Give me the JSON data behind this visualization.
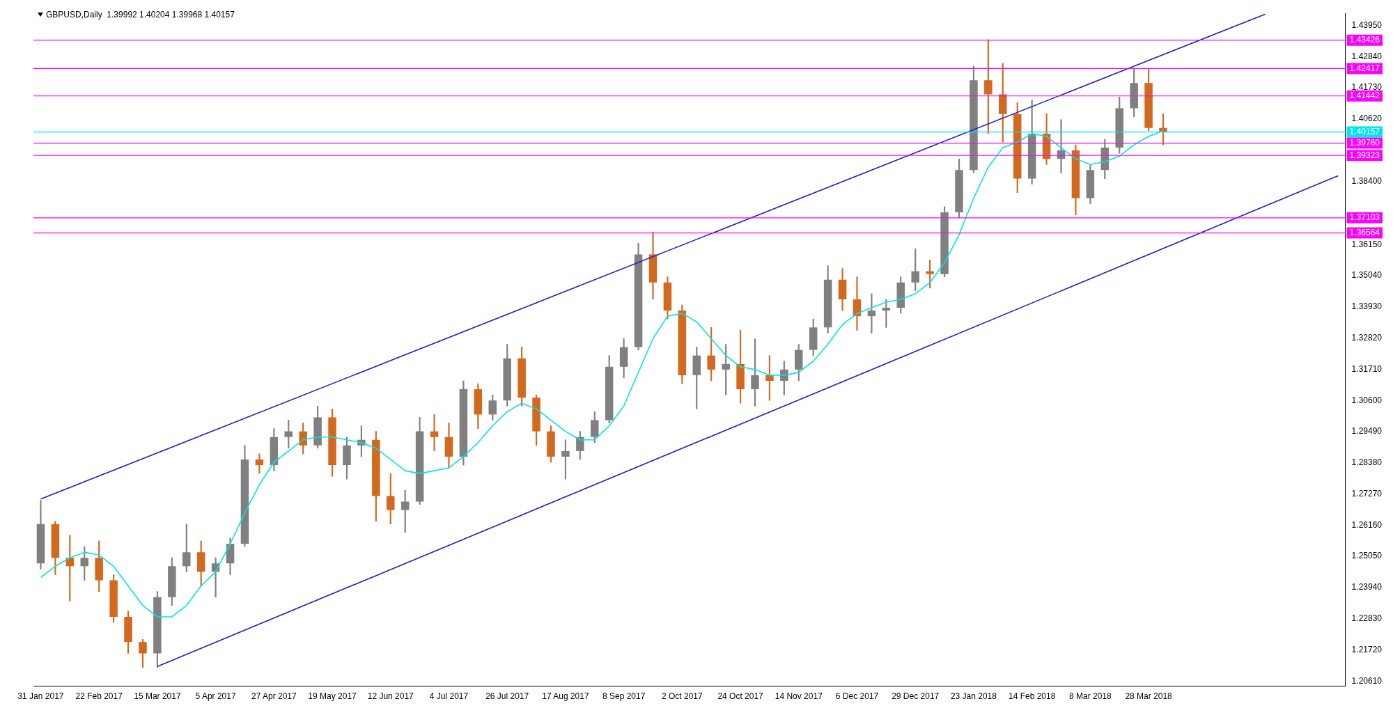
{
  "chart_data": {
    "type": "candlestick",
    "title": "GBPUSD,Daily  1.39992 1.40204 1.39968 1.40157",
    "categories": [
      "31 Jan 2017",
      null,
      null,
      null,
      "22 Feb 2017",
      null,
      null,
      null,
      "15 Mar 2017",
      null,
      null,
      null,
      "5 Apr 2017",
      null,
      null,
      null,
      "27 Apr 2017",
      null,
      null,
      null,
      "19 May 2017",
      null,
      null,
      null,
      "12 Jun 2017",
      null,
      null,
      null,
      "4 Jul 2017",
      null,
      null,
      null,
      "26 Jul 2017",
      null,
      null,
      null,
      "17 Aug 2017",
      null,
      null,
      null,
      "8 Sep 2017",
      null,
      null,
      null,
      "2 Oct 2017",
      null,
      null,
      null,
      "24 Oct 2017",
      null,
      null,
      null,
      "14 Nov 2017",
      null,
      null,
      null,
      "6 Dec 2017",
      null,
      null,
      null,
      "29 Dec 2017",
      null,
      null,
      null,
      "23 Jan 2018",
      null,
      null,
      null,
      "14 Feb 2018",
      null,
      null,
      null,
      "8 Mar 2018",
      null,
      null,
      null,
      "28 Mar 2018",
      null,
      null,
      null,
      null,
      null,
      null,
      null,
      null,
      null,
      null,
      null,
      null,
      null
    ],
    "ohlc": [
      [
        1.248,
        1.2705,
        1.246,
        1.262
      ],
      [
        1.262,
        1.263,
        1.244,
        1.25
      ],
      [
        1.25,
        1.258,
        1.2345,
        1.247
      ],
      [
        1.247,
        1.254,
        1.242,
        1.25
      ],
      [
        1.25,
        1.256,
        1.238,
        1.242
      ],
      [
        1.242,
        1.244,
        1.227,
        1.229
      ],
      [
        1.229,
        1.231,
        1.216,
        1.22
      ],
      [
        1.22,
        1.221,
        1.211,
        1.216
      ],
      [
        1.216,
        1.238,
        1.211,
        1.236
      ],
      [
        1.236,
        1.25,
        1.233,
        1.247
      ],
      [
        1.247,
        1.262,
        1.245,
        1.252
      ],
      [
        1.252,
        1.256,
        1.24,
        1.245
      ],
      [
        1.245,
        1.25,
        1.236,
        1.248
      ],
      [
        1.248,
        1.257,
        1.244,
        1.255
      ],
      [
        1.255,
        1.29,
        1.254,
        1.285
      ],
      [
        1.285,
        1.287,
        1.28,
        1.283
      ],
      [
        1.283,
        1.296,
        1.281,
        1.293
      ],
      [
        1.293,
        1.299,
        1.289,
        1.295
      ],
      [
        1.295,
        1.298,
        1.287,
        1.29
      ],
      [
        1.29,
        1.304,
        1.289,
        1.3
      ],
      [
        1.3,
        1.303,
        1.279,
        1.283
      ],
      [
        1.283,
        1.293,
        1.278,
        1.29
      ],
      [
        1.29,
        1.297,
        1.286,
        1.292
      ],
      [
        1.292,
        1.295,
        1.263,
        1.272
      ],
      [
        1.272,
        1.28,
        1.262,
        1.267
      ],
      [
        1.267,
        1.274,
        1.259,
        1.27
      ],
      [
        1.27,
        1.3,
        1.269,
        1.295
      ],
      [
        1.295,
        1.301,
        1.288,
        1.293
      ],
      [
        1.293,
        1.298,
        1.282,
        1.286
      ],
      [
        1.286,
        1.313,
        1.283,
        1.31
      ],
      [
        1.31,
        1.312,
        1.296,
        1.301
      ],
      [
        1.301,
        1.308,
        1.299,
        1.306
      ],
      [
        1.306,
        1.326,
        1.304,
        1.321
      ],
      [
        1.321,
        1.325,
        1.304,
        1.307
      ],
      [
        1.307,
        1.308,
        1.29,
        1.295
      ],
      [
        1.295,
        1.297,
        1.284,
        1.286
      ],
      [
        1.286,
        1.292,
        1.278,
        1.288
      ],
      [
        1.288,
        1.295,
        1.285,
        1.293
      ],
      [
        1.293,
        1.302,
        1.291,
        1.299
      ],
      [
        1.299,
        1.322,
        1.298,
        1.318
      ],
      [
        1.318,
        1.328,
        1.314,
        1.325
      ],
      [
        1.325,
        1.362,
        1.324,
        1.358
      ],
      [
        1.358,
        1.366,
        1.342,
        1.348
      ],
      [
        1.348,
        1.35,
        1.335,
        1.338
      ],
      [
        1.338,
        1.34,
        1.312,
        1.315
      ],
      [
        1.315,
        1.325,
        1.303,
        1.322
      ],
      [
        1.322,
        1.332,
        1.313,
        1.317
      ],
      [
        1.317,
        1.326,
        1.308,
        1.319
      ],
      [
        1.319,
        1.331,
        1.305,
        1.31
      ],
      [
        1.31,
        1.328,
        1.304,
        1.315
      ],
      [
        1.315,
        1.322,
        1.306,
        1.313
      ],
      [
        1.313,
        1.32,
        1.308,
        1.317
      ],
      [
        1.317,
        1.326,
        1.313,
        1.324
      ],
      [
        1.324,
        1.335,
        1.322,
        1.332
      ],
      [
        1.332,
        1.354,
        1.33,
        1.349
      ],
      [
        1.349,
        1.353,
        1.338,
        1.342
      ],
      [
        1.342,
        1.35,
        1.331,
        1.336
      ],
      [
        1.336,
        1.344,
        1.33,
        1.338
      ],
      [
        1.338,
        1.342,
        1.332,
        1.339
      ],
      [
        1.339,
        1.35,
        1.337,
        1.348
      ],
      [
        1.348,
        1.36,
        1.345,
        1.352
      ],
      [
        1.352,
        1.356,
        1.346,
        1.351
      ],
      [
        1.351,
        1.375,
        1.35,
        1.373
      ],
      [
        1.373,
        1.392,
        1.371,
        1.388
      ],
      [
        1.388,
        1.425,
        1.387,
        1.42
      ],
      [
        1.42,
        1.4345,
        1.401,
        1.415
      ],
      [
        1.415,
        1.426,
        1.398,
        1.408
      ],
      [
        1.408,
        1.412,
        1.38,
        1.385
      ],
      [
        1.385,
        1.413,
        1.383,
        1.401
      ],
      [
        1.401,
        1.408,
        1.39,
        1.392
      ],
      [
        1.392,
        1.406,
        1.387,
        1.395
      ],
      [
        1.395,
        1.397,
        1.372,
        1.378
      ],
      [
        1.378,
        1.39,
        1.376,
        1.388
      ],
      [
        1.388,
        1.399,
        1.385,
        1.396
      ],
      [
        1.396,
        1.414,
        1.394,
        1.41
      ],
      [
        1.41,
        1.424,
        1.407,
        1.419
      ],
      [
        1.419,
        1.424,
        1.402,
        1.403
      ],
      [
        1.403,
        1.408,
        1.397,
        1.4016
      ],
      null,
      null,
      null,
      null,
      null,
      null,
      null,
      null,
      null,
      null,
      null,
      null
    ],
    "colors": [
      "#808080",
      "#d2691e",
      "#d2691e",
      "#808080",
      "#d2691e",
      "#d2691e",
      "#d2691e",
      "#d2691e",
      "#808080",
      "#808080",
      "#808080",
      "#d2691e",
      "#808080",
      "#808080",
      "#808080",
      "#d2691e",
      "#808080",
      "#808080",
      "#d2691e",
      "#808080",
      "#d2691e",
      "#808080",
      "#808080",
      "#d2691e",
      "#d2691e",
      "#808080",
      "#808080",
      "#d2691e",
      "#d2691e",
      "#808080",
      "#d2691e",
      "#808080",
      "#808080",
      "#d2691e",
      "#d2691e",
      "#d2691e",
      "#808080",
      "#808080",
      "#808080",
      "#808080",
      "#808080",
      "#808080",
      "#d2691e",
      "#d2691e",
      "#d2691e",
      "#808080",
      "#d2691e",
      "#808080",
      "#d2691e",
      "#808080",
      "#d2691e",
      "#808080",
      "#808080",
      "#808080",
      "#808080",
      "#d2691e",
      "#d2691e",
      "#808080",
      "#808080",
      "#808080",
      "#808080",
      "#d2691e",
      "#808080",
      "#808080",
      "#808080",
      "#d2691e",
      "#d2691e",
      "#d2691e",
      "#808080",
      "#d2691e",
      "#808080",
      "#d2691e",
      "#808080",
      "#808080",
      "#808080",
      "#808080",
      "#d2691e",
      "#d2691e",
      null,
      null,
      null,
      null,
      null,
      null,
      null,
      null,
      null,
      null,
      null,
      null
    ],
    "series": [
      {
        "type": "line",
        "color": "#00e5ee",
        "values": [
          1.243,
          1.247,
          1.25,
          1.252,
          1.251,
          1.247,
          1.24,
          1.233,
          1.229,
          1.229,
          1.233,
          1.24,
          1.245,
          1.255,
          1.266,
          1.276,
          1.284,
          1.288,
          1.292,
          1.293,
          1.293,
          1.292,
          1.291,
          1.289,
          1.285,
          1.281,
          1.28,
          1.281,
          1.282,
          1.286,
          1.291,
          1.297,
          1.302,
          1.305,
          1.303,
          1.299,
          1.295,
          1.292,
          1.292,
          1.297,
          1.304,
          1.316,
          1.328,
          1.336,
          1.337,
          1.334,
          1.328,
          1.322,
          1.318,
          1.317,
          1.315,
          1.315,
          1.316,
          1.32,
          1.326,
          1.333,
          1.337,
          1.339,
          1.341,
          1.342,
          1.344,
          1.348,
          1.355,
          1.365,
          1.378,
          1.389,
          1.396,
          1.398,
          1.401,
          1.4,
          1.396,
          1.392,
          1.39,
          1.391,
          1.393,
          1.397,
          1.4,
          1.402,
          null,
          null,
          null,
          null,
          null,
          null,
          null,
          null,
          null,
          null,
          null,
          null
        ]
      },
      {
        "type": "line",
        "color": "#1c1ccf",
        "values": [
          1.2709,
          null,
          null,
          null,
          null,
          null,
          null,
          null,
          null,
          null,
          null,
          null,
          null,
          null,
          null,
          null,
          null,
          null,
          null,
          null,
          null,
          null,
          null,
          null,
          null,
          null,
          null,
          null,
          null,
          null,
          null,
          null,
          null,
          null,
          null,
          null,
          null,
          null,
          null,
          null,
          null,
          null,
          null,
          null,
          null,
          null,
          null,
          null,
          null,
          null,
          null,
          null,
          null,
          null,
          null,
          null,
          null,
          null,
          null,
          null,
          null,
          null,
          null,
          null,
          null,
          null,
          null,
          null,
          null,
          null,
          null,
          null,
          null,
          null,
          null,
          null,
          null,
          null,
          null,
          null,
          null,
          null,
          null,
          null,
          1.4435,
          null,
          null,
          null,
          null,
          null
        ]
      },
      {
        "type": "line",
        "color": "#1c1ccf",
        "values": [
          null,
          null,
          null,
          null,
          null,
          null,
          null,
          null,
          1.2113,
          null,
          null,
          null,
          null,
          null,
          null,
          null,
          null,
          null,
          null,
          null,
          null,
          null,
          null,
          null,
          null,
          null,
          null,
          null,
          null,
          null,
          null,
          null,
          null,
          null,
          null,
          null,
          null,
          null,
          null,
          null,
          null,
          null,
          null,
          null,
          null,
          null,
          null,
          null,
          null,
          null,
          null,
          null,
          null,
          null,
          null,
          null,
          null,
          null,
          null,
          null,
          null,
          null,
          null,
          null,
          null,
          null,
          null,
          null,
          null,
          null,
          null,
          null,
          null,
          null,
          null,
          null,
          null,
          null,
          null,
          null,
          null,
          null,
          null,
          null,
          null,
          null,
          null,
          null,
          null,
          1.386
        ]
      }
    ],
    "ylim": [
      1.2043,
      1.4438
    ],
    "yticks": [
      {
        "value": 1.2061,
        "label": "1.20610"
      },
      {
        "value": 1.2172,
        "label": "1.21720"
      },
      {
        "value": 1.2283,
        "label": "1.22830"
      },
      {
        "value": 1.2394,
        "label": "1.23940"
      },
      {
        "value": 1.2505,
        "label": "1.25050"
      },
      {
        "value": 1.2616,
        "label": "1.26160"
      },
      {
        "value": 1.2727,
        "label": "1.27270"
      },
      {
        "value": 1.2838,
        "label": "1.28380"
      },
      {
        "value": 1.2949,
        "label": "1.29490"
      },
      {
        "value": 1.306,
        "label": "1.30600"
      },
      {
        "value": 1.3171,
        "label": "1.31710"
      },
      {
        "value": 1.3282,
        "label": "1.32820"
      },
      {
        "value": 1.3393,
        "label": "1.33930"
      },
      {
        "value": 1.3504,
        "label": "1.35040"
      },
      {
        "value": 1.3615,
        "label": "1.36150"
      },
      {
        "value": 1.384,
        "label": "1.38400"
      },
      {
        "value": 1.4062,
        "label": "1.40620"
      },
      {
        "value": 1.4173,
        "label": "1.41730"
      },
      {
        "value": 1.4284,
        "label": "1.42840"
      },
      {
        "value": 1.4395,
        "label": "1.43950"
      }
    ],
    "ref_lines": [
      {
        "axis": "y",
        "value": 1.43426,
        "label": "1.43426",
        "color": "#ff00ff"
      },
      {
        "axis": "y",
        "value": 1.42417,
        "label": "1.42417",
        "color": "#ff00ff"
      },
      {
        "axis": "y",
        "value": 1.41442,
        "label": "1.41442",
        "color": "#ff00ff"
      },
      {
        "axis": "y",
        "value": 1.40157,
        "label": "1.40157",
        "color": "#00e5ee"
      },
      {
        "axis": "y",
        "value": 1.3976,
        "label": "1.39760",
        "color": "#ff00ff"
      },
      {
        "axis": "y",
        "value": 1.39323,
        "label": "1.39323",
        "color": "#ff00ff"
      },
      {
        "axis": "y",
        "value": 1.37103,
        "label": "1.37103",
        "color": "#ff00ff"
      },
      {
        "axis": "y",
        "value": 1.36564,
        "label": "1.36564",
        "color": "#ff00ff"
      }
    ],
    "grid": false,
    "legend": false
  }
}
